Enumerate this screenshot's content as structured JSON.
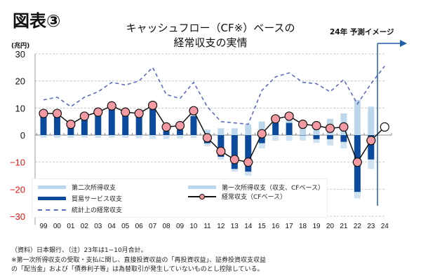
{
  "figure_label": "図表③",
  "title_line1": "キャッシュフロー（CF※）ベースの",
  "title_line2": "経常収支の実情",
  "forecast_label": "24年 予測イメージ",
  "unit_label": "(兆円)",
  "notes": [
    "（資料）日本銀行、（注）23年は1−10月合計。",
    "※第一次所得収支の受取・支払に関し、直接投資収益の「再投資収益」、証券投資収支収益",
    "の「配当金」および「債券利子等」は為替取引が発生していないものとし控除している。"
  ],
  "colors": {
    "trade": "#0b4a9c",
    "primary": "#bcd7ec",
    "secondary": "#cfe2f1",
    "ca_line": "#111111",
    "ca_marker": "#f59aa3",
    "stat_line": "#5a6cbf",
    "forecast_arrow": "#1f5fb0",
    "negative_tick": "#ee1111"
  },
  "chart_data": {
    "type": "bar",
    "title": "キャッシュフロー（CF※）ベースの経常収支の実情",
    "xlabel": "",
    "ylabel": "(兆円)",
    "ylim": [
      -30,
      30
    ],
    "yticks": [
      30,
      20,
      10,
      0,
      -10,
      -20,
      -30
    ],
    "grid": true,
    "legend_position": "bottom-inside",
    "categories": [
      "99",
      "00",
      "01",
      "02",
      "03",
      "04",
      "05",
      "06",
      "07",
      "08",
      "09",
      "10",
      "11",
      "12",
      "13",
      "14",
      "15",
      "16",
      "17",
      "18",
      "19",
      "20",
      "21",
      "22",
      "23",
      "24"
    ],
    "series": [
      {
        "name": "第二次所得収支",
        "kind": "bar-stack-negative",
        "values": [
          -1,
          -1,
          -1,
          -1,
          -1,
          -1,
          -1,
          -1.2,
          -1.4,
          -1.4,
          -1.2,
          -1.1,
          -1.1,
          -1,
          -1,
          -1.5,
          -1.9,
          -2.1,
          -2.1,
          -2,
          -1.4,
          -2.3,
          -2.4,
          -2.4,
          -3.5,
          null
        ]
      },
      {
        "name": "第一次所得収支（収支、CFベース）",
        "kind": "bar-stack-positive",
        "values": [
          1,
          1,
          1,
          1,
          0.5,
          0.8,
          1,
          1,
          1,
          1.5,
          1.5,
          2,
          2,
          2.5,
          2.5,
          4,
          5,
          2.5,
          3,
          4,
          4,
          6,
          8,
          13,
          10.5,
          null
        ]
      },
      {
        "name": "貿易サービス収支",
        "kind": "bar",
        "values": [
          7,
          7,
          3,
          6,
          8,
          10,
          7.5,
          7,
          10,
          1.5,
          2,
          7,
          -3,
          -8,
          -12.5,
          -13.5,
          -3,
          4.5,
          4.5,
          0,
          -1.5,
          -1.5,
          -2.5,
          -21,
          -9,
          null
        ]
      },
      {
        "name": "経常収支（CFベース）",
        "kind": "line-marker",
        "values": [
          8,
          8,
          4,
          7,
          8.5,
          10.8,
          8.5,
          8,
          11,
          3,
          3.5,
          9,
          -1,
          -6,
          -9,
          -10,
          0.5,
          6,
          7,
          4,
          3.5,
          2.5,
          3,
          -10,
          -2,
          3
        ],
        "forecast_from_index": 25
      },
      {
        "name": "統計上の経常収支",
        "kind": "dashed-line",
        "values": [
          13,
          14,
          10.5,
          14,
          16,
          19.5,
          18.5,
          20,
          25,
          15,
          13.5,
          19.5,
          10.5,
          5,
          4.5,
          4,
          16.5,
          21.5,
          23,
          19.5,
          19,
          16,
          20.5,
          11.5,
          19,
          25.5
        ]
      }
    ],
    "legend": [
      {
        "label": "第二次所得収支",
        "swatch": "light-bar"
      },
      {
        "label": "第一次所得収支（収支、CFベース）",
        "swatch": "light-bar"
      },
      {
        "label": "貿易サービス収支",
        "swatch": "dark-bar"
      },
      {
        "label": "経常収支（CFベース）",
        "swatch": "line-marker"
      },
      {
        "label": "統計上の経常収支",
        "swatch": "dashed-line"
      }
    ],
    "annotations": [
      "24年 予測イメージ"
    ]
  }
}
